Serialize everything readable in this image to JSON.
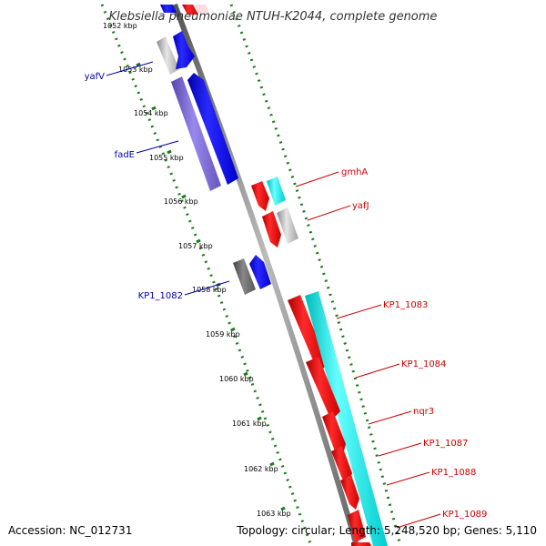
{
  "title": "Klebsiella pneumoniae NTUH-K2044, complete genome",
  "footer": {
    "accession": "Accession: NC_012731",
    "summary": "Topology: circular; Length: 5,248,520 bp; Genes: 5,110"
  },
  "colors": {
    "backbone": "#808080",
    "tick": "#1a7a1a",
    "forward_label": "#0000aa",
    "reverse_label": "#cc0000",
    "gene_blue": "#0000ee",
    "gene_red": "#ee0000",
    "gene_cyan": "#00cccc",
    "gene_gray": "#b0b0b0",
    "gene_purple": "#7766cc",
    "gene_dark": "#666666"
  },
  "ticks": [
    {
      "kbp": 1052,
      "label": "1052 kbp"
    },
    {
      "kbp": 1053,
      "label": "1053 kbp"
    },
    {
      "kbp": 1054,
      "label": "1054 kbp"
    },
    {
      "kbp": 1055,
      "label": "1055 kbp"
    },
    {
      "kbp": 1056,
      "label": "1056 kbp"
    },
    {
      "kbp": 1057,
      "label": "1057 kbp"
    },
    {
      "kbp": 1058,
      "label": "1058 kbp"
    },
    {
      "kbp": 1059,
      "label": "1059 kbp"
    },
    {
      "kbp": 1060,
      "label": "1060 kbp"
    },
    {
      "kbp": 1061,
      "label": "1061 kbp"
    },
    {
      "kbp": 1062,
      "label": "1062 kbp"
    },
    {
      "kbp": 1063,
      "label": "1063 kbp"
    }
  ],
  "gene_labels": [
    {
      "name": "yafV",
      "strand": "forward"
    },
    {
      "name": "fadE",
      "strand": "forward"
    },
    {
      "name": "KP1_1082",
      "strand": "forward"
    },
    {
      "name": "gmhA",
      "strand": "reverse"
    },
    {
      "name": "yafJ",
      "strand": "reverse"
    },
    {
      "name": "KP1_1083",
      "strand": "reverse"
    },
    {
      "name": "KP1_1084",
      "strand": "reverse"
    },
    {
      "name": "nqr3",
      "strand": "reverse"
    },
    {
      "name": "KP1_1087",
      "strand": "reverse"
    },
    {
      "name": "KP1_1088",
      "strand": "reverse"
    },
    {
      "name": "KP1_1089",
      "strand": "reverse"
    }
  ]
}
